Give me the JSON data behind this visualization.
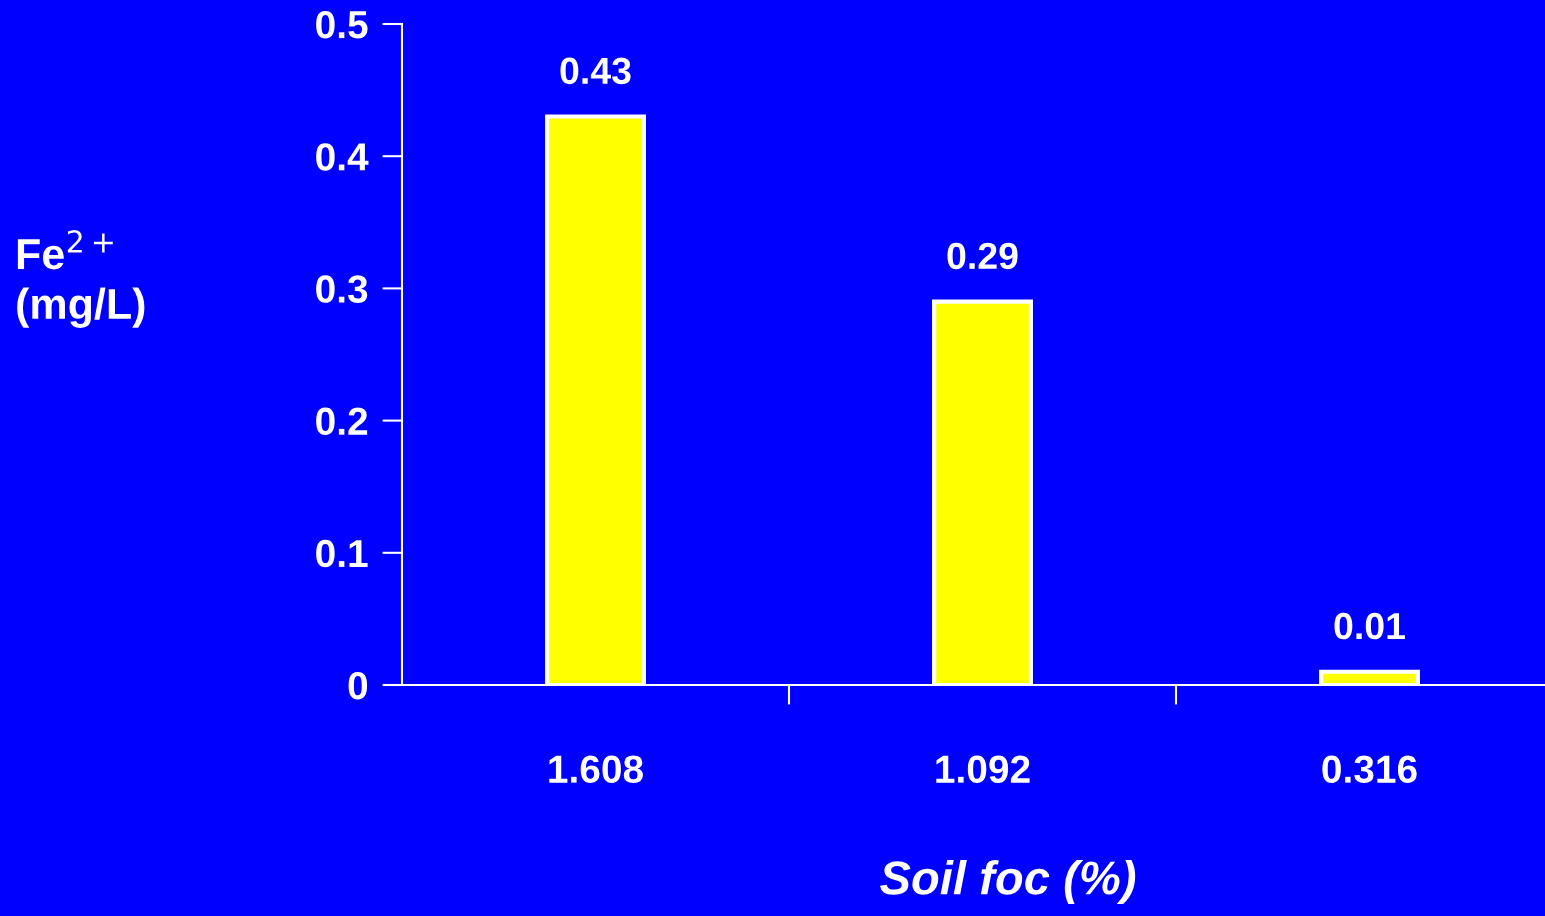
{
  "chart_data": {
    "type": "bar",
    "xlabel": "Soil foc (%)",
    "ylabel": "Fe$^{2+}$\n(mg/L)",
    "categories": [
      "1.608",
      "1.092",
      "0.316"
    ],
    "values": [
      0.43,
      0.29,
      0.01
    ],
    "color": "#ffff00",
    "ylim": [
      0,
      0.5
    ],
    "yticks": [
      0,
      0.1,
      0.2,
      0.3,
      0.4,
      0.5
    ],
    "data_labels": true,
    "grid": false
  }
}
